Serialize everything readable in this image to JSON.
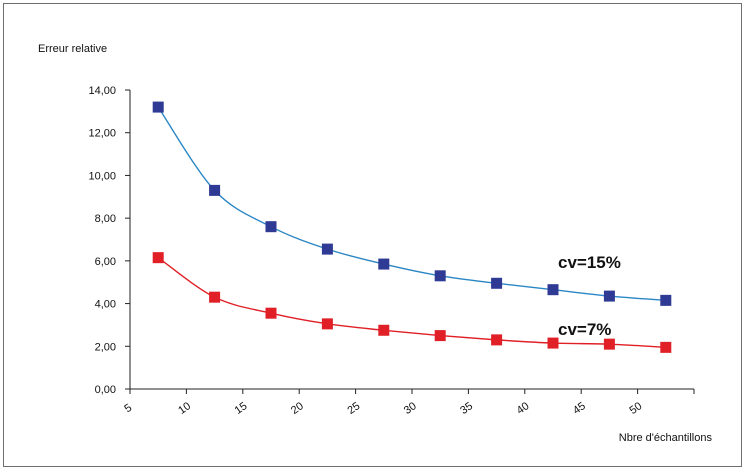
{
  "chart_data": {
    "type": "line",
    "ylabel": "Erreur relative",
    "xlabel": "Nbre d'échantillons",
    "xlim": [
      5,
      55
    ],
    "ylim": [
      0,
      14
    ],
    "x_ticks": [
      5,
      10,
      15,
      20,
      25,
      30,
      35,
      40,
      45,
      50
    ],
    "y_ticks": [
      "0,00",
      "2,00",
      "4,00",
      "6,00",
      "8,00",
      "10,00",
      "12,00",
      "14,00"
    ],
    "y_tick_values": [
      0,
      2,
      4,
      6,
      8,
      10,
      12,
      14
    ],
    "grid": false,
    "series": [
      {
        "name": "cv=15%",
        "line_color": "#2b86c4",
        "marker_color": "#2e3a94",
        "x": [
          7.5,
          12.5,
          17.5,
          22.5,
          27.5,
          32.5,
          37.5,
          42.5,
          47.5,
          52.5
        ],
        "y": [
          13.2,
          9.3,
          7.6,
          6.55,
          5.85,
          5.3,
          4.95,
          4.65,
          4.35,
          4.15
        ]
      },
      {
        "name": "cv=7%",
        "line_color": "#e02026",
        "marker_color": "#e02026",
        "x": [
          7.5,
          12.5,
          17.5,
          22.5,
          27.5,
          32.5,
          37.5,
          42.5,
          47.5,
          52.5
        ],
        "y": [
          6.15,
          4.3,
          3.55,
          3.05,
          2.75,
          2.5,
          2.3,
          2.15,
          2.1,
          1.95
        ]
      }
    ]
  }
}
